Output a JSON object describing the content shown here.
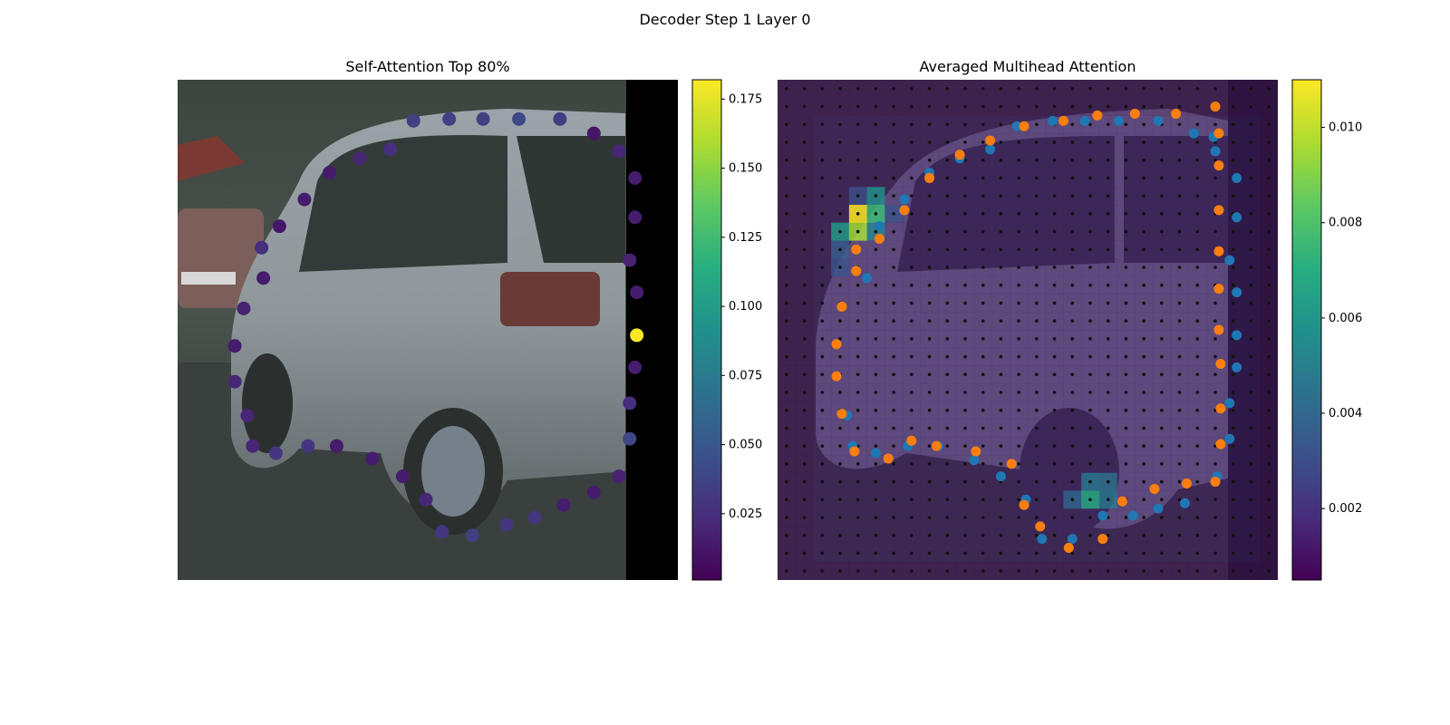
{
  "figure": {
    "title": "Decoder Step 1 Layer 0"
  },
  "chart_data": [
    {
      "type": "scatter",
      "title": "Self-Attention Top 80%",
      "colormap": "viridis",
      "colorbar": {
        "range": [
          0.001,
          0.182
        ],
        "ticks": [
          0.025,
          0.05,
          0.075,
          0.1,
          0.125,
          0.15,
          0.175
        ],
        "tick_labels": [
          "0.025",
          "0.050",
          "0.075",
          "0.100",
          "0.125",
          "0.150",
          "0.175"
        ]
      },
      "background": "camera image (silver car, right black padding strip)",
      "axes": {
        "xlim": [
          0,
          28
        ],
        "ylim": [
          28,
          0
        ],
        "grid": false,
        "visible": false
      },
      "points": [
        {
          "x": 13.2,
          "y": 2.3,
          "v": 0.035
        },
        {
          "x": 15.2,
          "y": 2.2,
          "v": 0.035
        },
        {
          "x": 17.1,
          "y": 2.2,
          "v": 0.035
        },
        {
          "x": 19.1,
          "y": 2.2,
          "v": 0.04
        },
        {
          "x": 21.4,
          "y": 2.2,
          "v": 0.033
        },
        {
          "x": 23.3,
          "y": 3.0,
          "v": 0.012
        },
        {
          "x": 24.7,
          "y": 4.0,
          "v": 0.02
        },
        {
          "x": 25.6,
          "y": 5.5,
          "v": 0.015
        },
        {
          "x": 25.6,
          "y": 7.7,
          "v": 0.015
        },
        {
          "x": 25.3,
          "y": 10.1,
          "v": 0.018
        },
        {
          "x": 25.7,
          "y": 11.9,
          "v": 0.015
        },
        {
          "x": 25.7,
          "y": 14.3,
          "v": 0.182
        },
        {
          "x": 25.6,
          "y": 16.1,
          "v": 0.015
        },
        {
          "x": 25.3,
          "y": 18.1,
          "v": 0.025
        },
        {
          "x": 25.3,
          "y": 20.1,
          "v": 0.04
        },
        {
          "x": 24.7,
          "y": 22.2,
          "v": 0.018
        },
        {
          "x": 23.3,
          "y": 23.1,
          "v": 0.015
        },
        {
          "x": 21.6,
          "y": 23.8,
          "v": 0.015
        },
        {
          "x": 20.0,
          "y": 24.5,
          "v": 0.03
        },
        {
          "x": 18.4,
          "y": 24.9,
          "v": 0.03
        },
        {
          "x": 16.5,
          "y": 25.5,
          "v": 0.035
        },
        {
          "x": 14.8,
          "y": 25.3,
          "v": 0.03
        },
        {
          "x": 13.9,
          "y": 23.5,
          "v": 0.02
        },
        {
          "x": 12.6,
          "y": 22.2,
          "v": 0.015
        },
        {
          "x": 10.9,
          "y": 21.2,
          "v": 0.015
        },
        {
          "x": 8.9,
          "y": 20.5,
          "v": 0.015
        },
        {
          "x": 7.3,
          "y": 20.5,
          "v": 0.03
        },
        {
          "x": 5.5,
          "y": 20.9,
          "v": 0.03
        },
        {
          "x": 4.2,
          "y": 20.5,
          "v": 0.02
        },
        {
          "x": 3.9,
          "y": 18.8,
          "v": 0.02
        },
        {
          "x": 3.2,
          "y": 16.9,
          "v": 0.02
        },
        {
          "x": 3.2,
          "y": 14.9,
          "v": 0.015
        },
        {
          "x": 3.7,
          "y": 12.8,
          "v": 0.018
        },
        {
          "x": 4.8,
          "y": 11.1,
          "v": 0.015
        },
        {
          "x": 4.7,
          "y": 9.4,
          "v": 0.025
        },
        {
          "x": 5.7,
          "y": 8.2,
          "v": 0.012
        },
        {
          "x": 7.1,
          "y": 6.7,
          "v": 0.015
        },
        {
          "x": 8.5,
          "y": 5.2,
          "v": 0.015
        },
        {
          "x": 10.2,
          "y": 4.4,
          "v": 0.02
        },
        {
          "x": 11.9,
          "y": 3.9,
          "v": 0.025
        }
      ]
    },
    {
      "type": "heatmap",
      "title": "Averaged Multihead Attention",
      "colormap": "viridis",
      "colorbar": {
        "range": [
          0.0005,
          0.011
        ],
        "ticks": [
          0.002,
          0.004,
          0.006,
          0.008,
          0.01
        ],
        "tick_labels": [
          "0.002",
          "0.004",
          "0.006",
          "0.008",
          "0.010"
        ]
      },
      "grid_size": [
        28,
        28
      ],
      "background": "camera image (silver car) under semi-transparent heatmap",
      "axes": {
        "xlim": [
          0,
          28
        ],
        "ylim": [
          28,
          0
        ],
        "grid": false,
        "visible": false
      },
      "hot_cells": [
        {
          "x": 4,
          "y": 7,
          "v": 0.011
        },
        {
          "x": 4,
          "y": 8,
          "v": 0.0095
        },
        {
          "x": 5,
          "y": 7,
          "v": 0.0075
        },
        {
          "x": 3,
          "y": 8,
          "v": 0.006
        },
        {
          "x": 5,
          "y": 6,
          "v": 0.0055
        },
        {
          "x": 5,
          "y": 8,
          "v": 0.005
        },
        {
          "x": 17,
          "y": 23,
          "v": 0.0068
        },
        {
          "x": 17,
          "y": 22,
          "v": 0.0045
        },
        {
          "x": 18,
          "y": 22,
          "v": 0.0042
        },
        {
          "x": 18,
          "y": 23,
          "v": 0.0045
        },
        {
          "x": 16,
          "y": 23,
          "v": 0.0038
        },
        {
          "x": 3,
          "y": 9,
          "v": 0.0035
        },
        {
          "x": 3,
          "y": 10,
          "v": 0.003
        },
        {
          "x": 4,
          "y": 6,
          "v": 0.003
        },
        {
          "x": 6,
          "y": 7,
          "v": 0.003
        }
      ],
      "marker_series": [
        {
          "color": "#1f77b4",
          "points": [
            [
              13.4,
              2.6
            ],
            [
              15.4,
              2.3
            ],
            [
              17.2,
              2.3
            ],
            [
              19.1,
              2.3
            ],
            [
              21.3,
              2.3
            ],
            [
              23.3,
              3.0
            ],
            [
              24.5,
              4.0
            ],
            [
              25.7,
              5.5
            ],
            [
              25.7,
              7.7
            ],
            [
              25.3,
              10.1
            ],
            [
              25.7,
              11.9
            ],
            [
              25.7,
              14.3
            ],
            [
              25.7,
              16.1
            ],
            [
              25.3,
              18.1
            ],
            [
              25.3,
              20.1
            ],
            [
              24.6,
              22.2
            ],
            [
              22.8,
              23.7
            ],
            [
              21.3,
              24.0
            ],
            [
              19.9,
              24.4
            ],
            [
              18.2,
              24.4
            ],
            [
              16.5,
              25.7
            ],
            [
              14.8,
              25.7
            ],
            [
              13.9,
              23.5
            ],
            [
              12.5,
              22.2
            ],
            [
              11.0,
              21.3
            ],
            [
              9.0,
              20.5
            ],
            [
              7.3,
              20.5
            ],
            [
              5.5,
              20.9
            ],
            [
              4.2,
              20.5
            ],
            [
              3.9,
              18.8
            ],
            [
              5.0,
              11.1
            ],
            [
              5.7,
              8.2
            ],
            [
              7.1,
              6.7
            ],
            [
              8.5,
              5.2
            ],
            [
              10.2,
              4.4
            ],
            [
              11.9,
              3.9
            ],
            [
              7.3,
              20.5
            ],
            [
              4.4,
              9.5
            ],
            [
              7.1,
              7.3
            ],
            [
              24.4,
              3.2
            ]
          ]
        },
        {
          "color": "#ff7f0e",
          "points": [
            [
              13.8,
              2.6
            ],
            [
              16.0,
              2.3
            ],
            [
              17.9,
              2.0
            ],
            [
              20.0,
              1.9
            ],
            [
              22.3,
              1.9
            ],
            [
              24.5,
              1.5
            ],
            [
              24.7,
              3.0
            ],
            [
              24.7,
              4.8
            ],
            [
              24.7,
              7.3
            ],
            [
              24.7,
              9.6
            ],
            [
              24.7,
              11.7
            ],
            [
              24.7,
              14.0
            ],
            [
              24.8,
              15.9
            ],
            [
              24.8,
              18.4
            ],
            [
              24.8,
              20.4
            ],
            [
              24.5,
              22.5
            ],
            [
              22.9,
              22.6
            ],
            [
              21.1,
              22.9
            ],
            [
              19.3,
              23.6
            ],
            [
              18.2,
              25.7
            ],
            [
              16.3,
              26.2
            ],
            [
              14.7,
              25.0
            ],
            [
              13.8,
              23.8
            ],
            [
              13.1,
              21.5
            ],
            [
              11.1,
              20.8
            ],
            [
              8.9,
              20.5
            ],
            [
              7.5,
              20.2
            ],
            [
              6.2,
              21.2
            ],
            [
              4.3,
              20.8
            ],
            [
              3.6,
              18.7
            ],
            [
              3.3,
              16.6
            ],
            [
              3.3,
              14.8
            ],
            [
              3.6,
              12.7
            ],
            [
              4.4,
              10.7
            ],
            [
              4.4,
              9.5
            ],
            [
              5.7,
              8.9
            ],
            [
              7.1,
              7.3
            ],
            [
              8.5,
              5.5
            ],
            [
              10.2,
              4.2
            ],
            [
              11.9,
              3.4
            ]
          ]
        }
      ]
    }
  ]
}
